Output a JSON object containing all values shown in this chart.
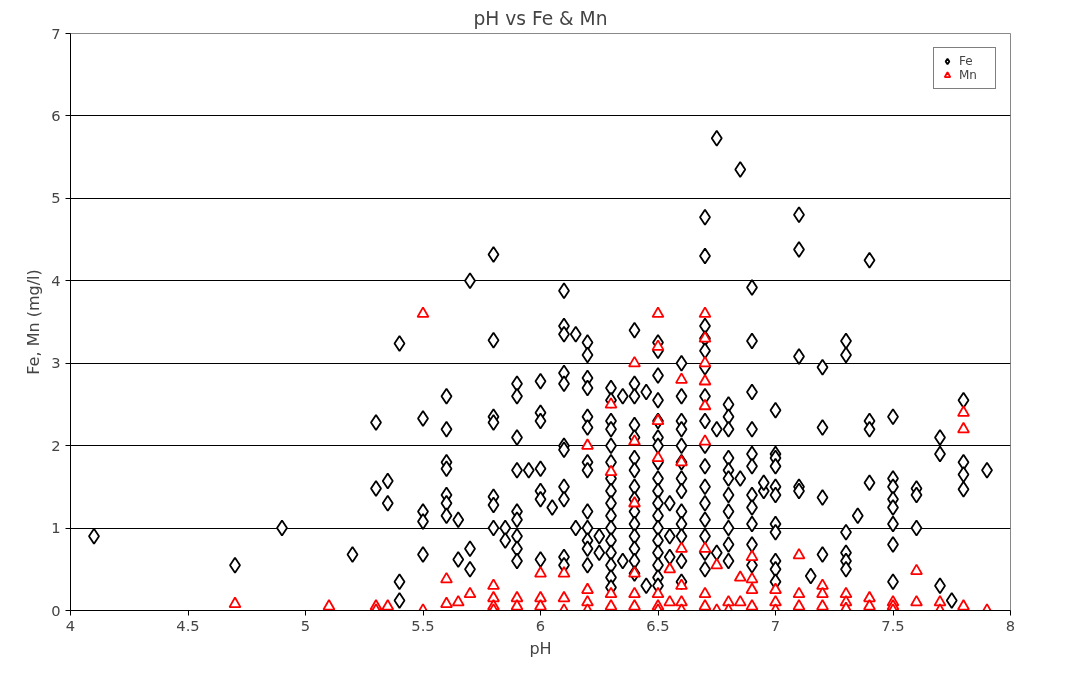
{
  "chart_data": {
    "type": "scatter",
    "title": "pH vs Fe & Mn",
    "xlabel": "pH",
    "ylabel": "Fe, Mn (mg/l)",
    "xlim": [
      4,
      8
    ],
    "xticks": [
      4,
      4.5,
      5,
      5.5,
      6,
      6.5,
      7,
      7.5,
      8
    ],
    "ylim": [
      0,
      7
    ],
    "yticks": [
      0,
      1,
      2,
      3,
      4,
      5,
      6,
      7
    ],
    "grid": "y",
    "legend": "top right",
    "series": [
      {
        "name": "Fe",
        "color": "#000000",
        "marker": "diamond",
        "x": [
          4.1,
          4.7,
          4.9,
          5.2,
          5.3,
          5.3,
          5.35,
          5.35,
          5.4,
          5.4,
          5.4,
          5.5,
          5.5,
          5.5,
          5.5,
          5.6,
          5.6,
          5.6,
          5.6,
          5.6,
          5.6,
          5.6,
          5.65,
          5.65,
          5.7,
          5.7,
          5.7,
          5.8,
          5.8,
          5.8,
          5.8,
          5.8,
          5.8,
          5.8,
          5.85,
          5.85,
          5.9,
          5.9,
          5.9,
          5.9,
          5.9,
          5.9,
          5.9,
          5.9,
          5.9,
          5.95,
          6.0,
          6.0,
          6.0,
          6.0,
          6.0,
          6.0,
          6.0,
          6.05,
          6.1,
          6.1,
          6.1,
          6.1,
          6.1,
          6.1,
          6.1,
          6.1,
          6.1,
          6.1,
          6.1,
          6.15,
          6.15,
          6.2,
          6.2,
          6.2,
          6.2,
          6.2,
          6.2,
          6.2,
          6.2,
          6.2,
          6.2,
          6.2,
          6.2,
          6.2,
          6.25,
          6.25,
          6.3,
          6.3,
          6.3,
          6.3,
          6.3,
          6.3,
          6.3,
          6.3,
          6.3,
          6.3,
          6.3,
          6.3,
          6.3,
          6.3,
          6.3,
          6.3,
          6.35,
          6.35,
          6.4,
          6.4,
          6.4,
          6.4,
          6.4,
          6.4,
          6.4,
          6.4,
          6.4,
          6.4,
          6.4,
          6.4,
          6.4,
          6.4,
          6.4,
          6.45,
          6.45,
          6.5,
          6.5,
          6.5,
          6.5,
          6.5,
          6.5,
          6.5,
          6.5,
          6.5,
          6.5,
          6.5,
          6.5,
          6.5,
          6.5,
          6.5,
          6.5,
          6.5,
          6.5,
          6.55,
          6.55,
          6.55,
          6.6,
          6.6,
          6.6,
          6.6,
          6.6,
          6.6,
          6.6,
          6.6,
          6.6,
          6.6,
          6.6,
          6.6,
          6.6,
          6.7,
          6.7,
          6.7,
          6.7,
          6.7,
          6.7,
          6.7,
          6.7,
          6.7,
          6.7,
          6.7,
          6.7,
          6.7,
          6.7,
          6.7,
          6.7,
          6.75,
          6.75,
          6.75,
          6.8,
          6.8,
          6.8,
          6.8,
          6.8,
          6.8,
          6.8,
          6.8,
          6.8,
          6.8,
          6.8,
          6.85,
          6.85,
          6.9,
          6.9,
          6.9,
          6.9,
          6.9,
          6.9,
          6.9,
          6.9,
          6.9,
          6.9,
          6.9,
          6.95,
          6.95,
          7.0,
          7.0,
          7.0,
          7.0,
          7.0,
          7.0,
          7.0,
          7.0,
          7.0,
          7.0,
          7.0,
          7.1,
          7.1,
          7.1,
          7.1,
          7.1,
          7.15,
          7.2,
          7.2,
          7.2,
          7.2,
          7.3,
          7.3,
          7.3,
          7.3,
          7.3,
          7.3,
          7.35,
          7.4,
          7.4,
          7.4,
          7.4,
          7.5,
          7.5,
          7.5,
          7.5,
          7.5,
          7.5,
          7.5,
          7.5,
          7.6,
          7.6,
          7.6,
          7.7,
          7.7,
          7.7,
          7.75,
          7.8,
          7.8,
          7.8,
          7.8,
          7.9
        ],
        "values": [
          0.9,
          0.55,
          1.0,
          0.68,
          2.28,
          1.48,
          1.57,
          1.3,
          3.24,
          0.35,
          0.12,
          2.33,
          1.2,
          1.08,
          0.68,
          2.6,
          2.2,
          1.8,
          1.72,
          1.4,
          1.3,
          1.15,
          1.1,
          0.62,
          4.0,
          0.75,
          0.5,
          4.32,
          3.28,
          2.35,
          2.28,
          1.38,
          1.28,
          1.0,
          1.0,
          0.85,
          2.75,
          2.6,
          2.1,
          1.7,
          1.2,
          1.1,
          0.9,
          0.75,
          0.6,
          1.7,
          2.78,
          2.4,
          2.3,
          1.72,
          1.45,
          1.35,
          0.62,
          1.25,
          3.88,
          3.45,
          3.35,
          2.88,
          2.75,
          2.0,
          1.95,
          1.5,
          1.35,
          0.65,
          0.55,
          3.35,
          1.0,
          3.25,
          3.1,
          2.82,
          2.7,
          2.35,
          2.22,
          1.8,
          1.7,
          1.2,
          1.0,
          0.85,
          0.75,
          0.55,
          0.7,
          0.9,
          2.7,
          2.55,
          2.3,
          2.2,
          2.0,
          1.8,
          1.6,
          1.45,
          1.3,
          1.15,
          1.0,
          0.85,
          0.7,
          0.55,
          0.4,
          0.28,
          2.6,
          0.6,
          3.4,
          2.75,
          2.6,
          2.25,
          2.1,
          1.85,
          1.7,
          1.5,
          1.35,
          1.2,
          1.05,
          0.9,
          0.75,
          0.6,
          0.45,
          2.65,
          0.3,
          3.25,
          3.15,
          2.85,
          2.55,
          2.3,
          2.1,
          2.0,
          1.8,
          1.6,
          1.45,
          1.3,
          1.15,
          1.0,
          0.85,
          0.7,
          0.55,
          0.4,
          0.3,
          1.3,
          0.65,
          0.9,
          3.0,
          2.6,
          2.3,
          2.2,
          2.0,
          1.8,
          1.6,
          1.45,
          1.2,
          1.05,
          0.9,
          0.6,
          0.35,
          4.77,
          4.3,
          3.45,
          3.3,
          3.15,
          2.95,
          2.6,
          2.3,
          2.0,
          1.75,
          1.5,
          1.3,
          1.1,
          0.9,
          0.7,
          0.5,
          5.73,
          2.2,
          0.7,
          2.5,
          2.35,
          2.2,
          1.85,
          1.7,
          1.6,
          1.4,
          1.2,
          1.0,
          0.8,
          0.6,
          5.35,
          1.6,
          3.92,
          3.27,
          2.65,
          2.2,
          1.9,
          1.75,
          1.4,
          1.25,
          1.05,
          0.8,
          0.55,
          1.45,
          1.55,
          2.43,
          1.9,
          1.85,
          1.75,
          1.5,
          1.4,
          1.05,
          0.95,
          0.6,
          0.5,
          0.35,
          4.8,
          4.38,
          3.08,
          1.5,
          1.45,
          0.42,
          2.95,
          2.22,
          1.37,
          0.68,
          3.27,
          3.1,
          0.95,
          0.7,
          0.6,
          0.5,
          1.15,
          4.25,
          2.3,
          2.2,
          1.55,
          2.35,
          1.6,
          1.5,
          1.35,
          1.25,
          1.05,
          0.8,
          0.35,
          1.48,
          1.4,
          1.0,
          2.1,
          1.9,
          0.3,
          0.12,
          2.55,
          1.8,
          1.65,
          1.47,
          1.7
        ]
      },
      {
        "name": "Mn",
        "color": "#ff0000",
        "marker": "triangle",
        "x": [
          4.7,
          5.1,
          5.3,
          5.3,
          5.35,
          5.5,
          5.5,
          5.6,
          5.6,
          5.65,
          5.7,
          5.8,
          5.8,
          5.8,
          5.8,
          5.9,
          5.9,
          6.0,
          6.0,
          6.0,
          6.1,
          6.1,
          6.1,
          6.2,
          6.2,
          6.2,
          6.2,
          6.3,
          6.3,
          6.3,
          6.3,
          6.4,
          6.4,
          6.4,
          6.4,
          6.4,
          6.4,
          6.5,
          6.5,
          6.5,
          6.5,
          6.5,
          6.5,
          6.5,
          6.55,
          6.55,
          6.6,
          6.6,
          6.6,
          6.6,
          6.6,
          6.6,
          6.7,
          6.7,
          6.7,
          6.7,
          6.7,
          6.7,
          6.7,
          6.7,
          6.7,
          6.75,
          6.75,
          6.8,
          6.8,
          6.85,
          6.85,
          6.9,
          6.9,
          6.9,
          6.9,
          7.0,
          7.0,
          7.0,
          7.1,
          7.1,
          7.1,
          7.2,
          7.2,
          7.2,
          7.3,
          7.3,
          7.3,
          7.4,
          7.4,
          7.5,
          7.5,
          7.5,
          7.6,
          7.6,
          7.7,
          7.7,
          7.8,
          7.8,
          7.8,
          7.9
        ],
        "values": [
          0.08,
          0.05,
          0.05,
          0.0,
          0.05,
          3.6,
          0.0,
          0.38,
          0.08,
          0.1,
          0.2,
          0.3,
          0.15,
          0.05,
          0.0,
          0.15,
          0.05,
          0.45,
          0.15,
          0.05,
          0.45,
          0.15,
          0.0,
          2.0,
          0.25,
          0.1,
          0.0,
          2.5,
          1.68,
          0.2,
          0.05,
          3.0,
          2.05,
          1.3,
          0.45,
          0.2,
          0.05,
          3.6,
          3.2,
          2.3,
          1.85,
          0.2,
          0.05,
          0.0,
          0.5,
          0.1,
          2.8,
          1.8,
          0.75,
          0.3,
          0.1,
          0.0,
          3.6,
          3.3,
          3.0,
          2.78,
          2.48,
          2.05,
          0.75,
          0.2,
          0.05,
          0.55,
          0.0,
          0.1,
          0.0,
          0.4,
          0.1,
          0.65,
          0.38,
          0.25,
          0.05,
          0.25,
          0.1,
          0.0,
          0.67,
          0.2,
          0.05,
          0.3,
          0.2,
          0.05,
          0.2,
          0.1,
          0.02,
          0.15,
          0.05,
          0.1,
          0.05,
          0.0,
          0.48,
          0.1,
          0.1,
          0.0,
          2.4,
          2.2,
          0.05,
          0.0
        ]
      }
    ]
  }
}
